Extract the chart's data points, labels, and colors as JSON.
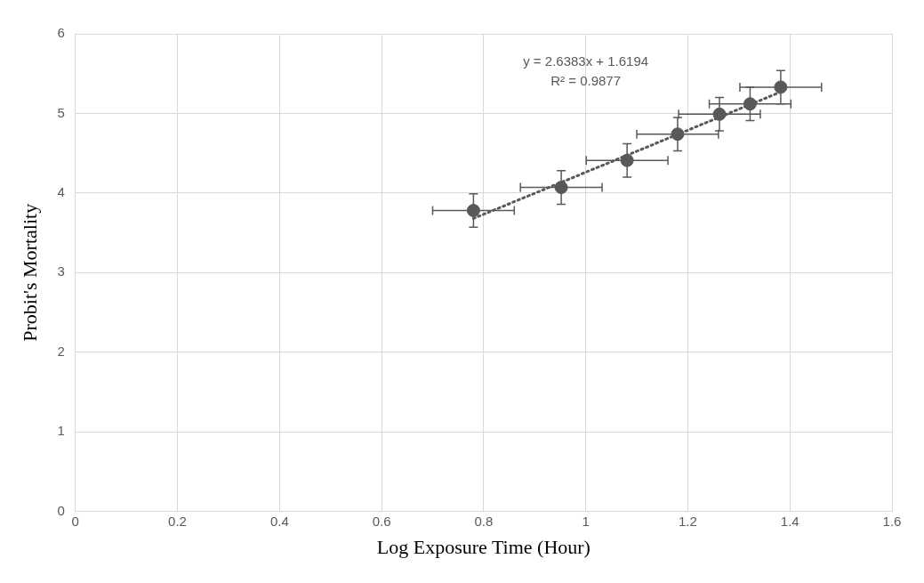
{
  "chart_data": {
    "type": "scatter",
    "xlabel": "Log Exposure Time (Hour)",
    "ylabel": "Probit's Mortality",
    "x": [
      0.78,
      0.952,
      1.081,
      1.18,
      1.262,
      1.322,
      1.382
    ],
    "series": [
      {
        "type": "scatter",
        "color": "#595959",
        "values": [
          3.78,
          4.07,
          4.41,
          4.74,
          4.99,
          5.12,
          5.33
        ],
        "errors": [
          0.21,
          0.21,
          0.21,
          0.21,
          0.21,
          0.21,
          0.21
        ],
        "xerrors": [
          0.08,
          0.08,
          0.08,
          0.08,
          0.08,
          0.08,
          0.08
        ],
        "marker": "circle"
      },
      {
        "type": "line",
        "color": "#595959",
        "x": [
          0.78,
          1.382
        ],
        "values": [
          3.68,
          5.27
        ],
        "line_style": "dotted",
        "marker": "none"
      }
    ],
    "annotations": [
      "y = 2.6383x + 1.6194",
      "R² = 0.9877"
    ],
    "xlim": [
      0,
      1.6
    ],
    "xticks": [
      0,
      0.2,
      0.4,
      0.6,
      0.8,
      1,
      1.2,
      1.4,
      1.6
    ],
    "ylim": [
      0,
      6
    ],
    "yticks": [
      0,
      1,
      2,
      3,
      4,
      5,
      6
    ],
    "grid": true,
    "legend": false
  }
}
